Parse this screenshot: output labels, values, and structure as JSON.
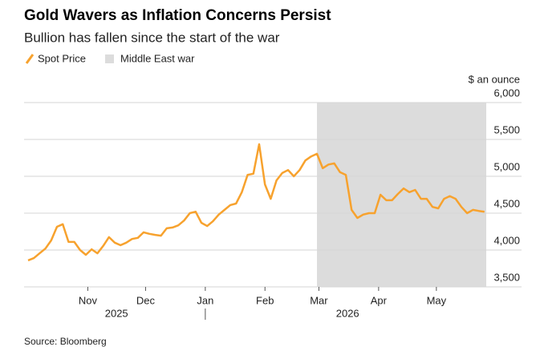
{
  "chart_data": {
    "type": "line",
    "title": "Gold Wavers as Inflation Concerns Persist",
    "subtitle": "Bullion has fallen since the start of the war",
    "y_axis_label": "$ an ounce",
    "source": "Source: Bloomberg",
    "series": [
      {
        "name": "Spot Price",
        "color": "#f7a22e",
        "values": [
          3860,
          3890,
          3955,
          4020,
          4130,
          4315,
          4350,
          4110,
          4110,
          4000,
          3935,
          4010,
          3955,
          4055,
          4175,
          4100,
          4065,
          4100,
          4150,
          4165,
          4240,
          4220,
          4205,
          4195,
          4295,
          4305,
          4335,
          4400,
          4500,
          4520,
          4370,
          4325,
          4390,
          4480,
          4545,
          4610,
          4630,
          4785,
          5020,
          5035,
          5435,
          4890,
          4695,
          4945,
          5045,
          5085,
          5000,
          5085,
          5215,
          5270,
          5305,
          5110,
          5160,
          5175,
          5055,
          5020,
          4545,
          4435,
          4480,
          4500,
          4500,
          4750,
          4675,
          4675,
          4760,
          4835,
          4785,
          4815,
          4695,
          4695,
          4585,
          4565,
          4695,
          4730,
          4695,
          4585,
          4500,
          4545,
          4530,
          4520
        ]
      }
    ],
    "shaded_range": {
      "name": "Middle East war",
      "color": "#dcdcdc",
      "range": [
        50,
        79.3
      ]
    },
    "xlim": [
      -0.7,
      79.3
    ],
    "xticks": [
      {
        "value": 10.33,
        "label": "Nov"
      },
      {
        "value": 20.33,
        "label": "Dec"
      },
      {
        "value": 30.67,
        "label": "Jan"
      },
      {
        "value": 41,
        "label": "Feb"
      },
      {
        "value": 50.33,
        "label": "Mar"
      },
      {
        "value": 60.67,
        "label": "Apr"
      },
      {
        "value": 70.67,
        "label": "May"
      }
    ],
    "year_labels": [
      {
        "value": 15.3,
        "label": "2025"
      },
      {
        "value": 55.3,
        "label": "2026"
      }
    ],
    "ylim": [
      3500,
      6000
    ],
    "yticks": [
      {
        "value": 3500,
        "label": "3,500"
      },
      {
        "value": 4000,
        "label": "4,000"
      },
      {
        "value": 4500,
        "label": "4,500"
      },
      {
        "value": 5000,
        "label": "5,000"
      },
      {
        "value": 5500,
        "label": "5,500"
      },
      {
        "value": 6000,
        "label": "6,000"
      }
    ],
    "grid": true
  }
}
